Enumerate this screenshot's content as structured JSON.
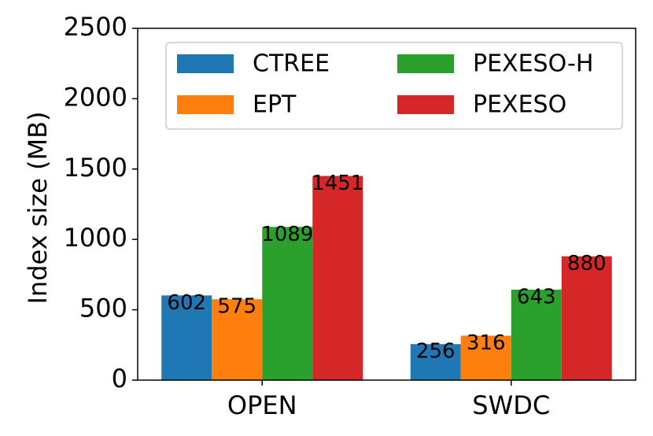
{
  "chart_data": {
    "type": "bar",
    "categories": [
      "OPEN",
      "SWDC"
    ],
    "series": [
      {
        "name": "CTREE",
        "values": [
          602,
          256
        ],
        "color": "#1f77b4"
      },
      {
        "name": "EPT",
        "values": [
          575,
          316
        ],
        "color": "#ff7f0e"
      },
      {
        "name": "PEXESO-H",
        "values": [
          1089,
          643
        ],
        "color": "#2ca02c"
      },
      {
        "name": "PEXESO",
        "values": [
          1451,
          880
        ],
        "color": "#d62728"
      }
    ],
    "title": "",
    "xlabel": "",
    "ylabel": "Index size (MB)",
    "ylim": [
      0,
      2500
    ],
    "yticks": [
      0,
      500,
      1000,
      1500,
      2000,
      2500
    ],
    "grid": false,
    "legend": {
      "placement": "top",
      "columns": 2
    }
  }
}
